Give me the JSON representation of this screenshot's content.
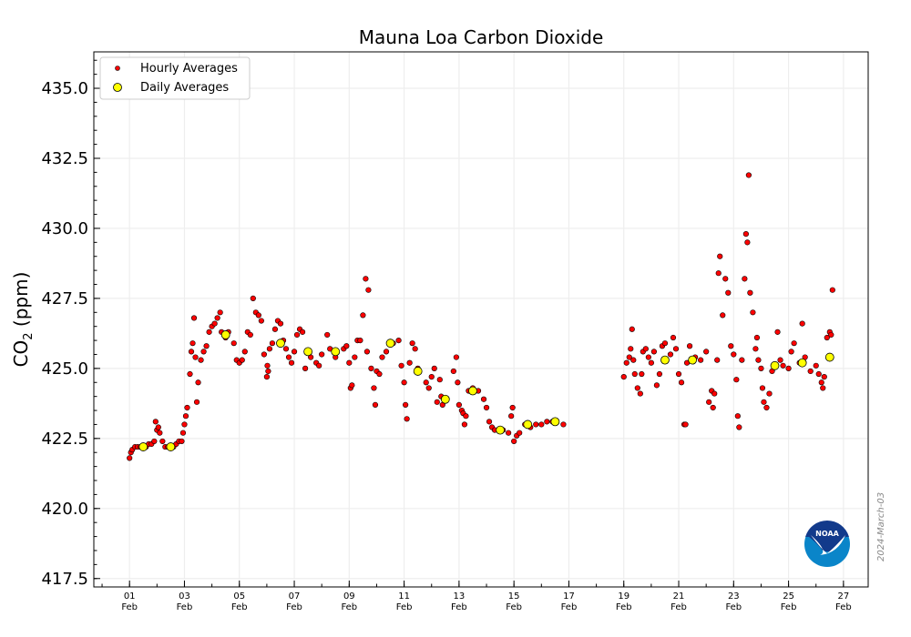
{
  "chart_data": {
    "type": "scatter",
    "title": "Mauna Loa Carbon Dioxide",
    "ylabel_main": "CO",
    "ylabel_sub": "2",
    "ylabel_unit": " (ppm)",
    "xlabel": "",
    "xlim": [
      -0.3,
      27.9
    ],
    "ylim": [
      417.2,
      436.3
    ],
    "yticks": [
      417.5,
      420.0,
      422.5,
      425.0,
      427.5,
      430.0,
      432.5,
      435.0
    ],
    "ytick_labels": [
      "417.5",
      "420.0",
      "422.5",
      "425.0",
      "427.5",
      "430.0",
      "432.5",
      "435.0"
    ],
    "xticks": [
      1,
      3,
      5,
      7,
      9,
      11,
      13,
      15,
      17,
      19,
      21,
      23,
      25,
      27
    ],
    "xtick_labels": [
      [
        "01",
        "Feb"
      ],
      [
        "03",
        "Feb"
      ],
      [
        "05",
        "Feb"
      ],
      [
        "07",
        "Feb"
      ],
      [
        "09",
        "Feb"
      ],
      [
        "11",
        "Feb"
      ],
      [
        "13",
        "Feb"
      ],
      [
        "15",
        "Feb"
      ],
      [
        "17",
        "Feb"
      ],
      [
        "19",
        "Feb"
      ],
      [
        "21",
        "Feb"
      ],
      [
        "23",
        "Feb"
      ],
      [
        "25",
        "Feb"
      ],
      [
        "27",
        "Feb"
      ]
    ],
    "grid": true,
    "legend_position": "top-left",
    "legend": [
      "Hourly Averages",
      "Daily Averages"
    ],
    "colors": {
      "hourly": "#ff0000",
      "daily": "#ffff00",
      "edge": "#000000"
    },
    "series": [
      {
        "name": "Hourly Averages",
        "points": [
          [
            1.0,
            421.8
          ],
          [
            1.05,
            422.0
          ],
          [
            1.1,
            422.1
          ],
          [
            1.2,
            422.2
          ],
          [
            1.3,
            422.2
          ],
          [
            1.4,
            422.2
          ],
          [
            1.6,
            422.2
          ],
          [
            1.7,
            422.3
          ],
          [
            1.8,
            422.3
          ],
          [
            1.9,
            422.4
          ],
          [
            1.95,
            423.1
          ],
          [
            2.0,
            422.8
          ],
          [
            2.05,
            422.9
          ],
          [
            2.1,
            422.7
          ],
          [
            2.2,
            422.4
          ],
          [
            2.3,
            422.2
          ],
          [
            2.4,
            422.2
          ],
          [
            2.6,
            422.2
          ],
          [
            2.7,
            422.3
          ],
          [
            2.8,
            422.4
          ],
          [
            2.9,
            422.4
          ],
          [
            2.95,
            422.7
          ],
          [
            3.0,
            423.0
          ],
          [
            3.05,
            423.3
          ],
          [
            3.1,
            423.6
          ],
          [
            3.2,
            424.8
          ],
          [
            3.25,
            425.6
          ],
          [
            3.3,
            425.9
          ],
          [
            3.35,
            426.8
          ],
          [
            3.4,
            425.4
          ],
          [
            3.45,
            423.8
          ],
          [
            3.5,
            424.5
          ],
          [
            3.6,
            425.3
          ],
          [
            3.7,
            425.6
          ],
          [
            3.8,
            425.8
          ],
          [
            3.9,
            426.3
          ],
          [
            4.0,
            426.5
          ],
          [
            4.1,
            426.6
          ],
          [
            4.2,
            426.8
          ],
          [
            4.3,
            427.0
          ],
          [
            4.35,
            426.3
          ],
          [
            4.5,
            426.1
          ],
          [
            4.6,
            426.3
          ],
          [
            4.8,
            425.9
          ],
          [
            4.9,
            425.3
          ],
          [
            5.0,
            425.2
          ],
          [
            5.1,
            425.3
          ],
          [
            5.2,
            425.6
          ],
          [
            5.3,
            426.3
          ],
          [
            5.4,
            426.2
          ],
          [
            5.5,
            427.5
          ],
          [
            5.6,
            427.0
          ],
          [
            5.7,
            426.9
          ],
          [
            5.8,
            426.7
          ],
          [
            5.9,
            425.5
          ],
          [
            6.0,
            424.7
          ],
          [
            6.02,
            425.1
          ],
          [
            6.05,
            424.9
          ],
          [
            6.1,
            425.7
          ],
          [
            6.2,
            425.9
          ],
          [
            6.3,
            426.4
          ],
          [
            6.4,
            426.7
          ],
          [
            6.5,
            426.6
          ],
          [
            6.6,
            426.0
          ],
          [
            6.7,
            425.7
          ],
          [
            6.8,
            425.4
          ],
          [
            6.9,
            425.2
          ],
          [
            7.0,
            425.6
          ],
          [
            7.1,
            426.2
          ],
          [
            7.2,
            426.4
          ],
          [
            7.3,
            426.3
          ],
          [
            7.4,
            425.0
          ],
          [
            7.6,
            425.4
          ],
          [
            7.8,
            425.2
          ],
          [
            7.9,
            425.1
          ],
          [
            8.0,
            425.5
          ],
          [
            8.2,
            426.2
          ],
          [
            8.3,
            425.7
          ],
          [
            8.5,
            425.4
          ],
          [
            8.8,
            425.7
          ],
          [
            8.9,
            425.8
          ],
          [
            9.0,
            425.2
          ],
          [
            9.05,
            424.3
          ],
          [
            9.1,
            424.4
          ],
          [
            9.2,
            425.4
          ],
          [
            9.3,
            426.0
          ],
          [
            9.4,
            426.0
          ],
          [
            9.5,
            426.9
          ],
          [
            9.6,
            428.2
          ],
          [
            9.65,
            425.6
          ],
          [
            9.7,
            427.8
          ],
          [
            9.8,
            425.0
          ],
          [
            9.9,
            424.3
          ],
          [
            9.95,
            423.7
          ],
          [
            10.0,
            424.9
          ],
          [
            10.1,
            424.8
          ],
          [
            10.2,
            425.4
          ],
          [
            10.35,
            425.6
          ],
          [
            10.6,
            425.9
          ],
          [
            10.8,
            426.0
          ],
          [
            10.9,
            425.1
          ],
          [
            11.0,
            424.5
          ],
          [
            11.05,
            423.7
          ],
          [
            11.1,
            423.2
          ],
          [
            11.2,
            425.2
          ],
          [
            11.3,
            425.9
          ],
          [
            11.4,
            425.7
          ],
          [
            11.5,
            425.0
          ],
          [
            11.8,
            424.5
          ],
          [
            11.9,
            424.3
          ],
          [
            12.0,
            424.7
          ],
          [
            12.1,
            425.0
          ],
          [
            12.2,
            423.8
          ],
          [
            12.3,
            424.6
          ],
          [
            12.35,
            424.0
          ],
          [
            12.4,
            423.7
          ],
          [
            12.8,
            424.9
          ],
          [
            12.9,
            425.4
          ],
          [
            12.95,
            424.5
          ],
          [
            13.0,
            423.7
          ],
          [
            13.1,
            423.5
          ],
          [
            13.15,
            423.4
          ],
          [
            13.2,
            423.0
          ],
          [
            13.25,
            423.3
          ],
          [
            13.35,
            424.2
          ],
          [
            13.5,
            424.3
          ],
          [
            13.7,
            424.2
          ],
          [
            13.9,
            423.9
          ],
          [
            14.0,
            423.6
          ],
          [
            14.1,
            423.1
          ],
          [
            14.2,
            422.9
          ],
          [
            14.3,
            422.8
          ],
          [
            14.6,
            422.8
          ],
          [
            14.8,
            422.7
          ],
          [
            14.9,
            423.3
          ],
          [
            14.95,
            423.6
          ],
          [
            15.0,
            422.4
          ],
          [
            15.1,
            422.6
          ],
          [
            15.2,
            422.7
          ],
          [
            15.4,
            423.0
          ],
          [
            15.6,
            422.9
          ],
          [
            15.8,
            423.0
          ],
          [
            16.0,
            423.0
          ],
          [
            16.2,
            423.1
          ],
          [
            16.4,
            423.1
          ],
          [
            16.8,
            423.0
          ],
          [
            19.0,
            424.7
          ],
          [
            19.1,
            425.2
          ],
          [
            19.2,
            425.4
          ],
          [
            19.25,
            425.7
          ],
          [
            19.3,
            426.4
          ],
          [
            19.35,
            425.3
          ],
          [
            19.4,
            424.8
          ],
          [
            19.5,
            424.3
          ],
          [
            19.6,
            424.1
          ],
          [
            19.65,
            424.8
          ],
          [
            19.7,
            425.6
          ],
          [
            19.8,
            425.7
          ],
          [
            19.9,
            425.4
          ],
          [
            20.0,
            425.2
          ],
          [
            20.1,
            425.6
          ],
          [
            20.2,
            424.4
          ],
          [
            20.3,
            424.8
          ],
          [
            20.4,
            425.8
          ],
          [
            20.5,
            425.9
          ],
          [
            20.7,
            425.5
          ],
          [
            20.8,
            426.1
          ],
          [
            20.9,
            425.7
          ],
          [
            21.0,
            424.8
          ],
          [
            21.1,
            424.5
          ],
          [
            21.2,
            423.0
          ],
          [
            21.25,
            423.0
          ],
          [
            21.3,
            425.2
          ],
          [
            21.4,
            425.8
          ],
          [
            21.6,
            425.4
          ],
          [
            21.8,
            425.3
          ],
          [
            22.0,
            425.6
          ],
          [
            22.1,
            423.8
          ],
          [
            22.2,
            424.2
          ],
          [
            22.25,
            423.6
          ],
          [
            22.3,
            424.1
          ],
          [
            22.4,
            425.3
          ],
          [
            22.45,
            428.4
          ],
          [
            22.5,
            429.0
          ],
          [
            22.6,
            426.9
          ],
          [
            22.7,
            428.2
          ],
          [
            22.8,
            427.7
          ],
          [
            22.9,
            425.8
          ],
          [
            23.0,
            425.5
          ],
          [
            23.1,
            424.6
          ],
          [
            23.15,
            423.3
          ],
          [
            23.2,
            422.9
          ],
          [
            23.3,
            425.3
          ],
          [
            23.4,
            428.2
          ],
          [
            23.45,
            429.8
          ],
          [
            23.5,
            429.5
          ],
          [
            23.55,
            431.9
          ],
          [
            23.6,
            427.7
          ],
          [
            23.7,
            427.0
          ],
          [
            23.8,
            425.7
          ],
          [
            23.85,
            426.1
          ],
          [
            23.9,
            425.3
          ],
          [
            24.0,
            425.0
          ],
          [
            24.05,
            424.3
          ],
          [
            24.1,
            423.8
          ],
          [
            24.2,
            423.6
          ],
          [
            24.3,
            424.1
          ],
          [
            24.4,
            424.9
          ],
          [
            24.6,
            426.3
          ],
          [
            24.7,
            425.3
          ],
          [
            24.8,
            425.1
          ],
          [
            25.0,
            425.0
          ],
          [
            25.1,
            425.6
          ],
          [
            25.2,
            425.9
          ],
          [
            25.4,
            425.2
          ],
          [
            25.5,
            426.6
          ],
          [
            25.6,
            425.4
          ],
          [
            25.8,
            424.9
          ],
          [
            26.0,
            425.1
          ],
          [
            26.1,
            424.8
          ],
          [
            26.2,
            424.5
          ],
          [
            26.25,
            424.3
          ],
          [
            26.3,
            424.7
          ],
          [
            26.4,
            426.1
          ],
          [
            26.5,
            426.3
          ],
          [
            26.55,
            426.2
          ],
          [
            26.6,
            427.8
          ]
        ]
      },
      {
        "name": "Daily Averages",
        "points": [
          [
            1.5,
            422.2
          ],
          [
            2.5,
            422.2
          ],
          [
            4.5,
            426.2
          ],
          [
            6.5,
            425.9
          ],
          [
            7.5,
            425.6
          ],
          [
            8.5,
            425.6
          ],
          [
            10.5,
            425.9
          ],
          [
            11.5,
            424.9
          ],
          [
            12.5,
            423.9
          ],
          [
            13.5,
            424.2
          ],
          [
            14.5,
            422.8
          ],
          [
            15.5,
            423.0
          ],
          [
            16.5,
            423.1
          ],
          [
            20.5,
            425.3
          ],
          [
            21.5,
            425.3
          ],
          [
            24.5,
            425.1
          ],
          [
            25.5,
            425.2
          ],
          [
            26.5,
            425.4
          ]
        ]
      }
    ]
  },
  "logo": {
    "text": "NOAA"
  },
  "stamp": "2024-March-03"
}
